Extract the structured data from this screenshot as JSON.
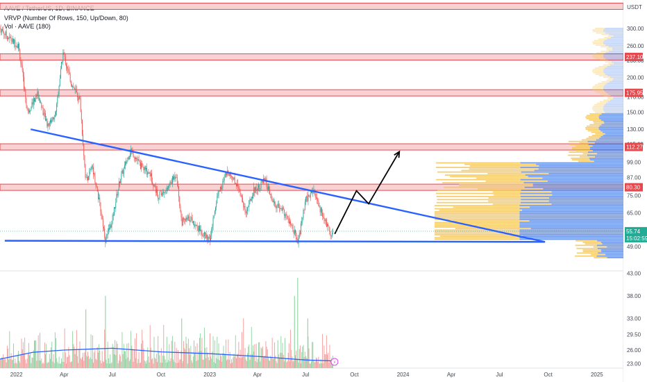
{
  "header": {
    "symbol_line": "AAVE / TetherUS, 1D, BINANCE",
    "vrvp_line": "VRVP (Number Of Rows, 150, Up/Down, 80)",
    "vol_line": "Vol · AAVE (180)"
  },
  "price_axis": {
    "currency": "USDT",
    "ticks": [
      "300.00",
      "260.00",
      "230.00",
      "200.00",
      "170.00",
      "150.00",
      "130.00",
      "115.00",
      "99.00",
      "87.00",
      "75.00",
      "65.00",
      "55.00",
      "49.00",
      "43.00",
      "38.00",
      "33.00",
      "29.50",
      "26.00",
      "23.00"
    ],
    "tick_values": [
      300,
      260,
      230,
      200,
      170,
      150,
      130,
      115,
      99,
      87,
      75,
      65,
      55,
      49,
      43,
      38,
      33,
      29.5,
      26,
      23
    ]
  },
  "time_axis": {
    "labels": [
      "2022",
      "Apr",
      "Jul",
      "Oct",
      "2023",
      "Apr",
      "Jul",
      "Oct",
      "2024",
      "Apr",
      "Jul",
      "Oct",
      "2025"
    ],
    "dates": [
      "2022-01-01",
      "2022-04-01",
      "2022-07-01",
      "2022-10-01",
      "2023-01-01",
      "2023-04-01",
      "2023-07-01",
      "2023-10-01",
      "2024-01-01",
      "2024-04-01",
      "2024-07-01",
      "2024-10-01",
      "2025-01-01"
    ]
  },
  "price_tags": {
    "levels": [
      {
        "label": "237.10",
        "value": 237.1,
        "color": "#e5484d"
      },
      {
        "label": "175.95",
        "value": 175.95,
        "color": "#e5484d"
      },
      {
        "label": "112.27",
        "value": 112.27,
        "color": "#e5484d"
      },
      {
        "label": "80.30",
        "value": 80.3,
        "color": "#e5484d"
      }
    ],
    "current_price": "55.74",
    "countdown": "15:02:59",
    "current_color": "#22ab94"
  },
  "colors": {
    "up": "#26a69a",
    "down": "#ef5350",
    "vol_up": "#8dd3a0",
    "vol_down": "#f49a9a",
    "trendline": "#2962ff",
    "vol_ma": "#2962ff",
    "zone_fill": "#f7c5c7",
    "zone_stroke": "#e5484d",
    "vp_up": "#f5c75b",
    "vp_down": "#5b8ae8",
    "arrow": "#000000"
  },
  "chart_data": {
    "type": "candlestick",
    "symbol": "AAVE / TetherUS",
    "interval": "1D",
    "exchange": "BINANCE",
    "y_scale": "log",
    "ylim": [
      45,
      320
    ],
    "xlim": [
      "2021-12-01",
      "2025-02-20"
    ],
    "close_path": [
      [
        "2021-12-01",
        300
      ],
      [
        "2021-12-20",
        275
      ],
      [
        "2022-01-05",
        260
      ],
      [
        "2022-01-22",
        150
      ],
      [
        "2022-02-10",
        175
      ],
      [
        "2022-02-28",
        135
      ],
      [
        "2022-03-15",
        145
      ],
      [
        "2022-03-30",
        245
      ],
      [
        "2022-04-15",
        190
      ],
      [
        "2022-05-01",
        165
      ],
      [
        "2022-05-12",
        85
      ],
      [
        "2022-05-25",
        95
      ],
      [
        "2022-06-10",
        65
      ],
      [
        "2022-06-18",
        52
      ],
      [
        "2022-06-30",
        60
      ],
      [
        "2022-07-15",
        85
      ],
      [
        "2022-08-05",
        110
      ],
      [
        "2022-08-25",
        95
      ],
      [
        "2022-09-10",
        90
      ],
      [
        "2022-09-25",
        75
      ],
      [
        "2022-10-10",
        78
      ],
      [
        "2022-10-30",
        90
      ],
      [
        "2022-11-09",
        60
      ],
      [
        "2022-11-25",
        62
      ],
      [
        "2022-12-15",
        56
      ],
      [
        "2023-01-01",
        51
      ],
      [
        "2023-01-15",
        75
      ],
      [
        "2023-02-05",
        92
      ],
      [
        "2023-02-25",
        80
      ],
      [
        "2023-03-10",
        65
      ],
      [
        "2023-03-25",
        78
      ],
      [
        "2023-04-15",
        85
      ],
      [
        "2023-05-01",
        70
      ],
      [
        "2023-05-20",
        66
      ],
      [
        "2023-06-10",
        55
      ],
      [
        "2023-06-16",
        50
      ],
      [
        "2023-07-01",
        72
      ],
      [
        "2023-07-15",
        78
      ],
      [
        "2023-07-31",
        65
      ],
      [
        "2023-08-17",
        55
      ],
      [
        "2023-08-22",
        55.74
      ]
    ],
    "volume_ma": [
      [
        "2021-12-01",
        24
      ],
      [
        "2022-02-01",
        25.5
      ],
      [
        "2022-04-01",
        26
      ],
      [
        "2022-07-01",
        26.4
      ],
      [
        "2022-10-01",
        25.6
      ],
      [
        "2023-01-01",
        25.2
      ],
      [
        "2023-04-01",
        24.6
      ],
      [
        "2023-07-01",
        23.8
      ],
      [
        "2023-08-22",
        23.6
      ]
    ],
    "horizontal_zones": [
      237.1,
      175.95,
      112.27,
      80.3,
      320
    ],
    "triangle": {
      "upper": [
        [
          "2022-01-28",
          130
        ],
        [
          "2024-09-25",
          51
        ]
      ],
      "lower": [
        [
          "2021-12-10",
          51.5
        ],
        [
          "2024-09-25",
          51
        ]
      ]
    },
    "projection_arrow": [
      [
        "2023-08-25",
        54.5
      ],
      [
        "2023-10-05",
        78
      ],
      [
        "2023-10-28",
        70
      ],
      [
        "2023-12-25",
        108
      ]
    ],
    "volume_profile": "VRVP Up/Down, peak volume around 55-99 USDT"
  }
}
